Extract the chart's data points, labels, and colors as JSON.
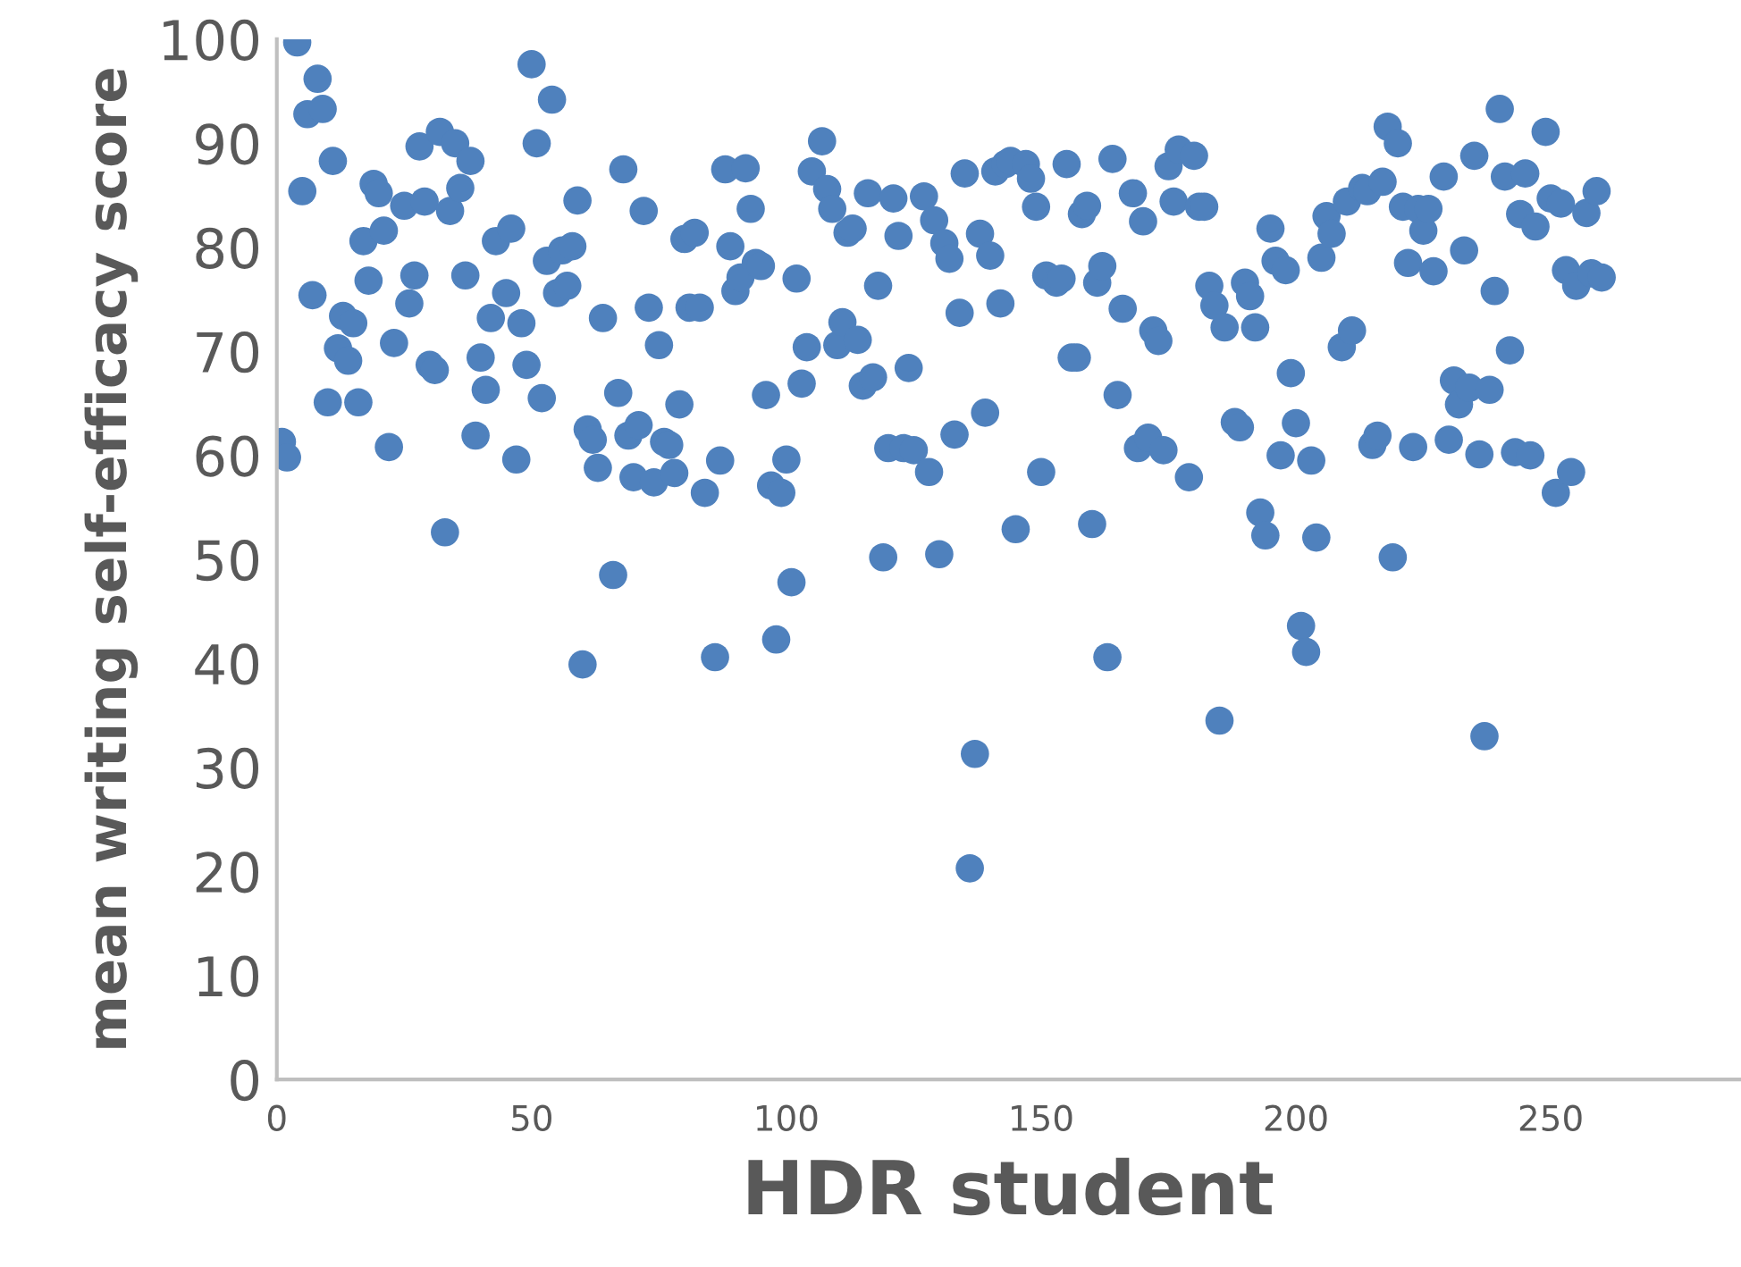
{
  "chart_data": {
    "type": "scatter",
    "xlabel": "HDR student",
    "ylabel": "mean writing self-efficacy score",
    "xlim": [
      0,
      287
    ],
    "xticks": [
      0,
      50,
      100,
      150,
      200,
      250
    ],
    "ylim": [
      0,
      100
    ],
    "yticks": [
      0,
      10,
      20,
      30,
      40,
      50,
      60,
      70,
      80,
      90,
      100
    ],
    "grid": false,
    "legend": false,
    "marker": "circle",
    "series": [
      {
        "color": "#4f81bd",
        "x": [
          1,
          2,
          4,
          5,
          6,
          7,
          8,
          9,
          10,
          11,
          12,
          13,
          14,
          15,
          16,
          17,
          18,
          19,
          20,
          21,
          22,
          23,
          25,
          26,
          27,
          28,
          29,
          30,
          31,
          32,
          33,
          34,
          35,
          36,
          37,
          38,
          39,
          40,
          41,
          42,
          43,
          45,
          46,
          47,
          48,
          49,
          50,
          51,
          52,
          53,
          54,
          55,
          56,
          57,
          58,
          59,
          60,
          61,
          62,
          63,
          64,
          66,
          67,
          68,
          69,
          70,
          71,
          72,
          73,
          74,
          75,
          76,
          77,
          78,
          79,
          80,
          81,
          82,
          83,
          84,
          86,
          87,
          88,
          89,
          90,
          91,
          92,
          93,
          94,
          95,
          96,
          97,
          98,
          99,
          100,
          101,
          102,
          103,
          104,
          105,
          107,
          108,
          109,
          110,
          111,
          112,
          113,
          114,
          115,
          116,
          117,
          118,
          119,
          120,
          121,
          122,
          123,
          124,
          125,
          127,
          128,
          129,
          130,
          131,
          132,
          133,
          134,
          135,
          136,
          137,
          138,
          139,
          140,
          141,
          142,
          143,
          144,
          145,
          147,
          148,
          149,
          150,
          151,
          153,
          154,
          155,
          156,
          157,
          158,
          159,
          160,
          161,
          162,
          163,
          164,
          165,
          166,
          168,
          169,
          170,
          171,
          172,
          173,
          174,
          175,
          176,
          177,
          179,
          180,
          181,
          182,
          183,
          184,
          185,
          186,
          188,
          189,
          190,
          191,
          192,
          193,
          194,
          195,
          196,
          197,
          198,
          199,
          200,
          201,
          202,
          203,
          204,
          205,
          206,
          207,
          209,
          210,
          211,
          213,
          214,
          215,
          216,
          217,
          218,
          219,
          220,
          221,
          222,
          223,
          224,
          225,
          226,
          227,
          229,
          230,
          231,
          232,
          233,
          234,
          235,
          236,
          237,
          238,
          239,
          240,
          241,
          242,
          243,
          244,
          245,
          246,
          247,
          249,
          250,
          251,
          252,
          253,
          254,
          255,
          257,
          258,
          259,
          260
        ],
        "values": [
          61.3,
          59.8,
          99.7,
          85.4,
          92.8,
          75.4,
          96.2,
          93.3,
          65.1,
          88.3,
          70.3,
          73.4,
          69.1,
          72.7,
          65.1,
          80.6,
          76.8,
          86.1,
          85.2,
          81.6,
          60.8,
          70.8,
          84.0,
          74.6,
          77.3,
          89.7,
          84.4,
          68.7,
          68.2,
          91.1,
          52.6,
          83.5,
          90.0,
          85.7,
          77.3,
          88.3,
          61.9,
          69.4,
          66.3,
          73.2,
          80.6,
          75.6,
          81.8,
          59.6,
          72.7,
          68.7,
          97.6,
          90.0,
          65.5,
          78.7,
          94.2,
          75.6,
          79.7,
          76.3,
          80.1,
          84.5,
          39.9,
          62.5,
          61.5,
          58.8,
          73.2,
          48.5,
          66.0,
          87.5,
          61.9,
          57.9,
          62.9,
          83.5,
          74.2,
          57.4,
          70.6,
          61.3,
          61.0,
          58.3,
          64.9,
          80.8,
          74.2,
          81.4,
          74.2,
          56.4,
          40.6,
          59.5,
          87.5,
          80.1,
          75.8,
          77.1,
          87.6,
          83.7,
          78.5,
          78.2,
          65.8,
          57.1,
          42.3,
          56.4,
          59.6,
          47.8,
          77.0,
          66.9,
          70.4,
          87.3,
          90.2,
          85.6,
          83.7,
          70.6,
          72.8,
          81.4,
          81.8,
          71.1,
          66.7,
          85.2,
          67.5,
          76.3,
          50.2,
          60.7,
          84.7,
          81.1,
          60.7,
          68.4,
          60.5,
          84.9,
          58.4,
          82.6,
          50.5,
          80.4,
          78.9,
          62.0,
          73.7,
          87.1,
          20.3,
          31.3,
          81.3,
          64.1,
          79.2,
          87.3,
          74.6,
          88.0,
          88.3,
          52.9,
          88.0,
          86.6,
          83.9,
          58.4,
          77.3,
          76.6,
          77.0,
          88.0,
          69.4,
          69.4,
          83.2,
          84.0,
          53.4,
          76.6,
          78.2,
          40.6,
          88.5,
          65.8,
          74.1,
          85.2,
          60.7,
          82.5,
          61.7,
          72.0,
          71.0,
          60.5,
          87.8,
          84.4,
          89.4,
          57.9,
          88.8,
          83.9,
          83.9,
          76.3,
          74.4,
          34.5,
          72.3,
          63.2,
          62.7,
          76.6,
          75.3,
          72.3,
          54.5,
          52.3,
          81.8,
          78.7,
          60.0,
          77.8,
          67.9,
          63.1,
          43.6,
          41.1,
          59.5,
          52.1,
          79.0,
          83.0,
          81.3,
          70.4,
          84.4,
          72.0,
          85.7,
          85.4,
          61.0,
          61.9,
          86.3,
          91.6,
          50.2,
          90.0,
          83.9,
          78.5,
          60.8,
          83.7,
          81.6,
          83.7,
          77.7,
          86.8,
          61.5,
          67.2,
          64.9,
          79.7,
          66.5,
          88.8,
          60.1,
          33.0,
          66.3,
          75.8,
          93.3,
          86.8,
          70.1,
          60.3,
          83.2,
          87.1,
          60.0,
          82.0,
          91.1,
          84.7,
          56.4,
          84.2,
          77.8,
          58.4,
          76.3,
          83.3,
          77.5,
          85.4,
          77.1
        ]
      }
    ]
  }
}
